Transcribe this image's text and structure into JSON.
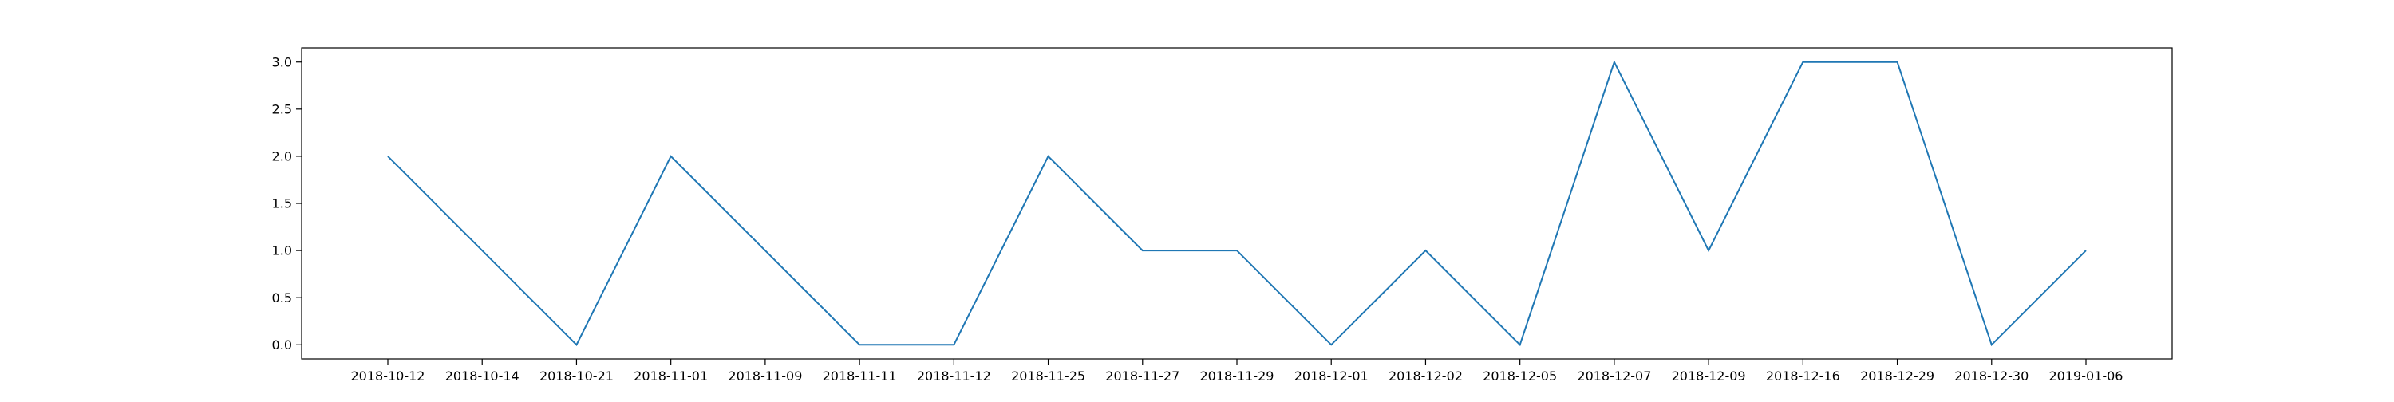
{
  "chart_data": {
    "type": "line",
    "title": "",
    "xlabel": "",
    "ylabel": "",
    "categories": [
      "2018-10-12",
      "2018-10-14",
      "2018-10-21",
      "2018-11-01",
      "2018-11-09",
      "2018-11-11",
      "2018-11-12",
      "2018-11-25",
      "2018-11-27",
      "2018-11-29",
      "2018-12-01",
      "2018-12-02",
      "2018-12-05",
      "2018-12-07",
      "2018-12-09",
      "2018-12-16",
      "2018-12-29",
      "2018-12-30",
      "2019-01-06"
    ],
    "series": [
      {
        "color": "#1f77b4",
        "values": [
          2,
          1,
          0,
          2,
          1,
          0,
          0,
          2,
          1,
          1,
          0,
          1,
          0,
          3,
          1,
          3,
          3,
          0,
          1
        ]
      }
    ],
    "ylim": [
      -0.15,
      3.15
    ],
    "yticks": [
      "0.0",
      "0.5",
      "1.0",
      "1.5",
      "2.0",
      "2.5",
      "3.0"
    ],
    "grid": false,
    "legend": "none"
  }
}
